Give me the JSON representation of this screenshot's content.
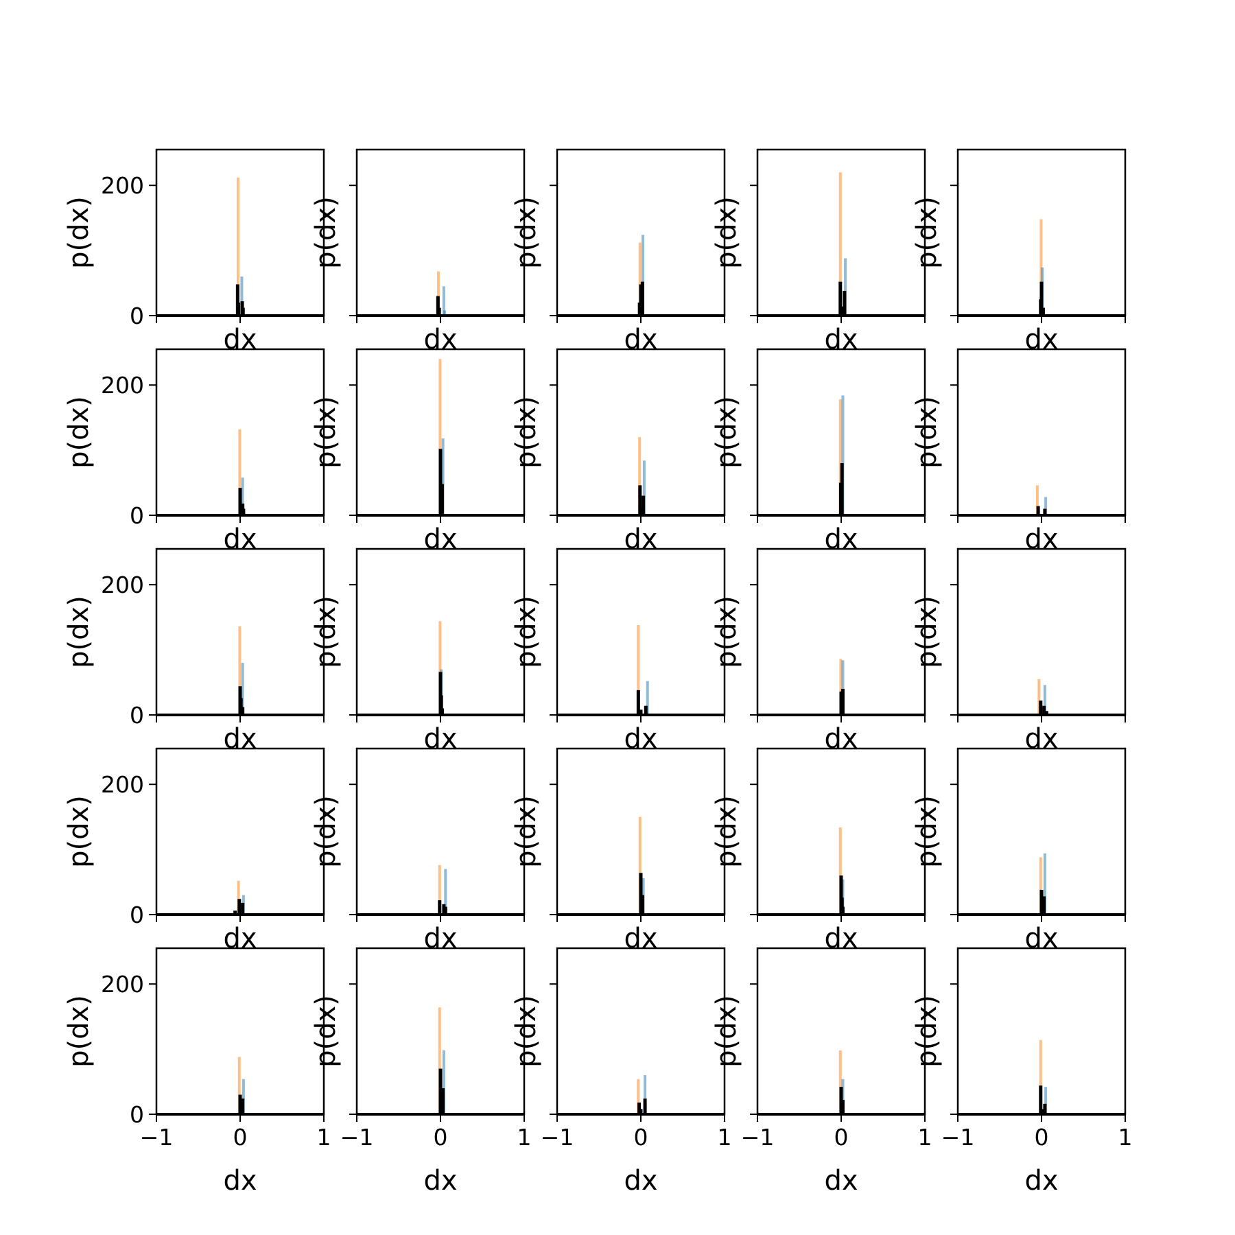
{
  "chart_data": {
    "type": "histogram-grid",
    "rows": 5,
    "cols": 5,
    "xlabel": "dx",
    "ylabel": "p(dx)",
    "xlim": [
      -1,
      1
    ],
    "ylim": [
      0,
      255
    ],
    "x_ticks": [
      -1,
      0,
      1
    ],
    "x_tick_labels": [
      "−1",
      "0",
      "1"
    ],
    "y_ticks": [
      0,
      200
    ],
    "y_tick_labels": [
      "0",
      "200"
    ],
    "colors": {
      "series_a": "#1f77b4",
      "series_b": "#ff7f0e",
      "overlay": "#000000"
    },
    "panels": [
      {
        "row": 0,
        "col": 0,
        "bars": [
          {
            "x": -0.025,
            "y": 212,
            "s": "b"
          },
          {
            "x": -0.03,
            "y": 48,
            "s": "k"
          },
          {
            "x": -0.02,
            "y": 20,
            "s": "k"
          },
          {
            "x": 0.02,
            "y": 60,
            "s": "a"
          },
          {
            "x": 0.025,
            "y": 22,
            "s": "k"
          },
          {
            "x": 0.035,
            "y": 12,
            "s": "k"
          }
        ]
      },
      {
        "row": 0,
        "col": 1,
        "bars": [
          {
            "x": -0.025,
            "y": 68,
            "s": "b"
          },
          {
            "x": -0.03,
            "y": 30,
            "s": "k"
          },
          {
            "x": -0.015,
            "y": 12,
            "s": "k"
          },
          {
            "x": 0.04,
            "y": 45,
            "s": "a"
          },
          {
            "x": 0.05,
            "y": 8,
            "s": "a"
          }
        ]
      },
      {
        "row": 0,
        "col": 2,
        "bars": [
          {
            "x": -0.01,
            "y": 112,
            "s": "b"
          },
          {
            "x": 0.025,
            "y": 124,
            "s": "a"
          },
          {
            "x": 0.0,
            "y": 48,
            "s": "k"
          },
          {
            "x": 0.02,
            "y": 52,
            "s": "k"
          },
          {
            "x": -0.015,
            "y": 20,
            "s": "k"
          }
        ]
      },
      {
        "row": 0,
        "col": 3,
        "bars": [
          {
            "x": -0.01,
            "y": 220,
            "s": "b"
          },
          {
            "x": 0.05,
            "y": 88,
            "s": "a"
          },
          {
            "x": -0.01,
            "y": 52,
            "s": "k"
          },
          {
            "x": 0.04,
            "y": 38,
            "s": "k"
          },
          {
            "x": 0.0,
            "y": 14,
            "s": "k"
          }
        ]
      },
      {
        "row": 0,
        "col": 4,
        "bars": [
          {
            "x": -0.005,
            "y": 148,
            "s": "b"
          },
          {
            "x": 0.01,
            "y": 74,
            "s": "a"
          },
          {
            "x": 0.0,
            "y": 52,
            "s": "k"
          },
          {
            "x": -0.01,
            "y": 25,
            "s": "k"
          },
          {
            "x": 0.02,
            "y": 12,
            "s": "k"
          }
        ]
      },
      {
        "row": 1,
        "col": 0,
        "bars": [
          {
            "x": -0.005,
            "y": 132,
            "s": "b"
          },
          {
            "x": 0.03,
            "y": 58,
            "s": "a"
          },
          {
            "x": 0.0,
            "y": 42,
            "s": "k"
          },
          {
            "x": 0.03,
            "y": 18,
            "s": "k"
          },
          {
            "x": 0.04,
            "y": 10,
            "s": "k"
          }
        ]
      },
      {
        "row": 1,
        "col": 1,
        "bars": [
          {
            "x": -0.005,
            "y": 240,
            "s": "b"
          },
          {
            "x": 0.03,
            "y": 118,
            "s": "a"
          },
          {
            "x": 0.0,
            "y": 102,
            "s": "k"
          },
          {
            "x": 0.02,
            "y": 48,
            "s": "k"
          },
          {
            "x": 0.01,
            "y": 20,
            "s": "k"
          }
        ]
      },
      {
        "row": 1,
        "col": 2,
        "bars": [
          {
            "x": -0.015,
            "y": 120,
            "s": "b"
          },
          {
            "x": 0.04,
            "y": 84,
            "s": "a"
          },
          {
            "x": -0.01,
            "y": 46,
            "s": "k"
          },
          {
            "x": 0.03,
            "y": 30,
            "s": "k"
          },
          {
            "x": 0.01,
            "y": 12,
            "s": "k"
          }
        ]
      },
      {
        "row": 1,
        "col": 3,
        "bars": [
          {
            "x": -0.01,
            "y": 178,
            "s": "b"
          },
          {
            "x": 0.02,
            "y": 184,
            "s": "a"
          },
          {
            "x": 0.01,
            "y": 80,
            "s": "k"
          },
          {
            "x": -0.005,
            "y": 50,
            "s": "k"
          },
          {
            "x": 0.0,
            "y": 18,
            "s": "k"
          }
        ]
      },
      {
        "row": 1,
        "col": 4,
        "bars": [
          {
            "x": -0.05,
            "y": 46,
            "s": "b"
          },
          {
            "x": 0.05,
            "y": 28,
            "s": "a"
          },
          {
            "x": -0.04,
            "y": 14,
            "s": "k"
          },
          {
            "x": 0.04,
            "y": 10,
            "s": "k"
          }
        ]
      },
      {
        "row": 2,
        "col": 0,
        "bars": [
          {
            "x": -0.005,
            "y": 136,
            "s": "b"
          },
          {
            "x": 0.03,
            "y": 80,
            "s": "a"
          },
          {
            "x": 0.0,
            "y": 44,
            "s": "k"
          },
          {
            "x": 0.01,
            "y": 26,
            "s": "k"
          },
          {
            "x": 0.03,
            "y": 12,
            "s": "k"
          }
        ]
      },
      {
        "row": 2,
        "col": 1,
        "bars": [
          {
            "x": -0.005,
            "y": 144,
            "s": "b"
          },
          {
            "x": 0.01,
            "y": 70,
            "s": "a"
          },
          {
            "x": 0.0,
            "y": 66,
            "s": "k"
          },
          {
            "x": 0.01,
            "y": 30,
            "s": "k"
          },
          {
            "x": 0.02,
            "y": 10,
            "s": "k"
          }
        ]
      },
      {
        "row": 2,
        "col": 2,
        "bars": [
          {
            "x": -0.03,
            "y": 138,
            "s": "b"
          },
          {
            "x": 0.08,
            "y": 52,
            "s": "a"
          },
          {
            "x": -0.03,
            "y": 38,
            "s": "k"
          },
          {
            "x": 0.06,
            "y": 14,
            "s": "k"
          },
          {
            "x": 0.0,
            "y": 8,
            "s": "k"
          }
        ]
      },
      {
        "row": 2,
        "col": 3,
        "bars": [
          {
            "x": -0.005,
            "y": 86,
            "s": "b"
          },
          {
            "x": 0.02,
            "y": 84,
            "s": "a"
          },
          {
            "x": 0.0,
            "y": 36,
            "s": "k"
          },
          {
            "x": 0.02,
            "y": 40,
            "s": "k"
          },
          {
            "x": 0.01,
            "y": 10,
            "s": "k"
          }
        ]
      },
      {
        "row": 2,
        "col": 4,
        "bars": [
          {
            "x": -0.03,
            "y": 55,
            "s": "b"
          },
          {
            "x": 0.04,
            "y": 46,
            "s": "a"
          },
          {
            "x": -0.01,
            "y": 22,
            "s": "k"
          },
          {
            "x": 0.03,
            "y": 14,
            "s": "k"
          },
          {
            "x": 0.06,
            "y": 6,
            "s": "k"
          }
        ]
      },
      {
        "row": 3,
        "col": 0,
        "bars": [
          {
            "x": -0.02,
            "y": 52,
            "s": "b"
          },
          {
            "x": 0.04,
            "y": 30,
            "s": "a"
          },
          {
            "x": -0.01,
            "y": 24,
            "s": "k"
          },
          {
            "x": 0.03,
            "y": 18,
            "s": "k"
          },
          {
            "x": -0.06,
            "y": 6,
            "s": "k"
          }
        ]
      },
      {
        "row": 3,
        "col": 1,
        "bars": [
          {
            "x": -0.01,
            "y": 76,
            "s": "b"
          },
          {
            "x": 0.06,
            "y": 70,
            "s": "a"
          },
          {
            "x": -0.01,
            "y": 22,
            "s": "k"
          },
          {
            "x": 0.04,
            "y": 16,
            "s": "k"
          },
          {
            "x": 0.06,
            "y": 12,
            "s": "k"
          }
        ]
      },
      {
        "row": 3,
        "col": 2,
        "bars": [
          {
            "x": -0.01,
            "y": 150,
            "s": "b"
          },
          {
            "x": 0.03,
            "y": 56,
            "s": "a"
          },
          {
            "x": 0.0,
            "y": 64,
            "s": "k"
          },
          {
            "x": 0.02,
            "y": 30,
            "s": "k"
          },
          {
            "x": 0.01,
            "y": 12,
            "s": "k"
          }
        ]
      },
      {
        "row": 3,
        "col": 3,
        "bars": [
          {
            "x": -0.01,
            "y": 134,
            "s": "b"
          },
          {
            "x": 0.02,
            "y": 54,
            "s": "a"
          },
          {
            "x": 0.0,
            "y": 60,
            "s": "k"
          },
          {
            "x": 0.01,
            "y": 26,
            "s": "k"
          },
          {
            "x": 0.02,
            "y": 12,
            "s": "k"
          }
        ]
      },
      {
        "row": 3,
        "col": 4,
        "bars": [
          {
            "x": -0.01,
            "y": 88,
            "s": "b"
          },
          {
            "x": 0.04,
            "y": 94,
            "s": "a"
          },
          {
            "x": 0.0,
            "y": 38,
            "s": "k"
          },
          {
            "x": 0.03,
            "y": 28,
            "s": "k"
          },
          {
            "x": 0.01,
            "y": 14,
            "s": "k"
          }
        ]
      },
      {
        "row": 4,
        "col": 0,
        "bars": [
          {
            "x": -0.01,
            "y": 88,
            "s": "b"
          },
          {
            "x": 0.04,
            "y": 54,
            "s": "a"
          },
          {
            "x": 0.0,
            "y": 30,
            "s": "k"
          },
          {
            "x": 0.03,
            "y": 24,
            "s": "k"
          },
          {
            "x": 0.01,
            "y": 10,
            "s": "k"
          }
        ]
      },
      {
        "row": 4,
        "col": 1,
        "bars": [
          {
            "x": -0.01,
            "y": 164,
            "s": "b"
          },
          {
            "x": 0.04,
            "y": 98,
            "s": "a"
          },
          {
            "x": 0.0,
            "y": 70,
            "s": "k"
          },
          {
            "x": 0.03,
            "y": 40,
            "s": "k"
          },
          {
            "x": 0.01,
            "y": 14,
            "s": "k"
          }
        ]
      },
      {
        "row": 4,
        "col": 2,
        "bars": [
          {
            "x": -0.03,
            "y": 54,
            "s": "b"
          },
          {
            "x": 0.05,
            "y": 60,
            "s": "a"
          },
          {
            "x": -0.02,
            "y": 18,
            "s": "k"
          },
          {
            "x": 0.05,
            "y": 24,
            "s": "k"
          },
          {
            "x": 0.0,
            "y": 8,
            "s": "k"
          }
        ]
      },
      {
        "row": 4,
        "col": 3,
        "bars": [
          {
            "x": -0.01,
            "y": 98,
            "s": "b"
          },
          {
            "x": 0.02,
            "y": 54,
            "s": "a"
          },
          {
            "x": 0.0,
            "y": 42,
            "s": "k"
          },
          {
            "x": 0.02,
            "y": 22,
            "s": "k"
          },
          {
            "x": 0.01,
            "y": 10,
            "s": "k"
          }
        ]
      },
      {
        "row": 4,
        "col": 4,
        "bars": [
          {
            "x": -0.01,
            "y": 114,
            "s": "b"
          },
          {
            "x": 0.05,
            "y": 42,
            "s": "a"
          },
          {
            "x": -0.01,
            "y": 44,
            "s": "k"
          },
          {
            "x": 0.04,
            "y": 16,
            "s": "k"
          },
          {
            "x": 0.02,
            "y": 8,
            "s": "k"
          }
        ]
      }
    ]
  }
}
